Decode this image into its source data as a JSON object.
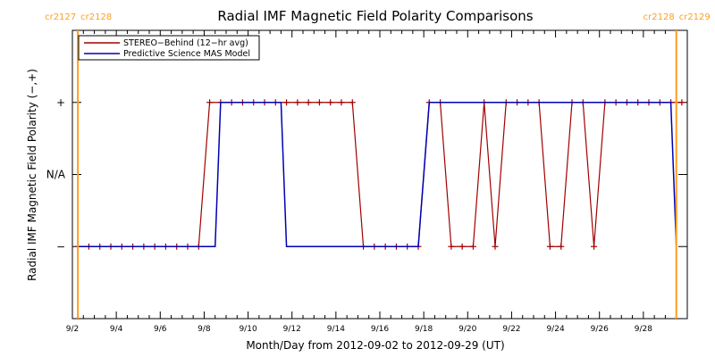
{
  "chart_data": {
    "type": "line",
    "title": "Radial IMF Magnetic Field Polarity Comparisons",
    "xlabel": "Month/Day from 2012-09-02 to 2012-09-29 (UT)",
    "ylabel": "Radial IMF Magnetic Field Polarity (−,+)",
    "x_range": [
      "2012-09-02T00:00",
      "2012-09-30T00:00"
    ],
    "x_ticks": [
      "9/2",
      "9/4",
      "9/6",
      "9/8",
      "9/10",
      "9/12",
      "9/14",
      "9/16",
      "9/18",
      "9/20",
      "9/22",
      "9/24",
      "9/26",
      "9/28"
    ],
    "y_categories": [
      "−",
      "N/A",
      "+"
    ],
    "y_values": [
      -1,
      0,
      1
    ],
    "ylim": [
      -2,
      2
    ],
    "grid": false,
    "legend": "top-left",
    "carrington_markers": [
      {
        "date": "2012-09-02T06:00",
        "labels": [
          "cr2127",
          "cr2128"
        ],
        "label_side": "left"
      },
      {
        "date": "2012-09-29T12:00",
        "labels": [
          "cr2128",
          "cr2129"
        ],
        "label_side": "right"
      }
    ],
    "series": [
      {
        "name": "STEREO−Behind (12−hr avg)",
        "color": "#a00000",
        "step_hours": 12,
        "start": "2012-09-02T06:00",
        "values": [
          -1,
          -1,
          -1,
          -1,
          -1,
          -1,
          -1,
          -1,
          -1,
          -1,
          -1,
          -1,
          1,
          1,
          1,
          1,
          1,
          1,
          1,
          1,
          1,
          1,
          1,
          1,
          1,
          1,
          -1,
          -1,
          -1,
          -1,
          -1,
          -1,
          1,
          1,
          -1,
          -1,
          -1,
          1,
          -1,
          1,
          1,
          1,
          1,
          -1,
          -1,
          1,
          1,
          -1,
          1,
          1,
          1,
          1,
          1,
          1,
          1,
          1
        ]
      },
      {
        "name": "Predictive Science MAS Model",
        "color": "#0000b4",
        "points": [
          [
            "2012-09-02T06:00",
            -1
          ],
          [
            "2012-09-08T12:00",
            -1
          ],
          [
            "2012-09-08T18:00",
            1
          ],
          [
            "2012-09-11T12:00",
            1
          ],
          [
            "2012-09-11T18:00",
            -1
          ],
          [
            "2012-09-17T18:00",
            -1
          ],
          [
            "2012-09-18T06:00",
            1
          ],
          [
            "2012-09-29T06:00",
            1
          ],
          [
            "2012-09-29T12:00",
            -1
          ]
        ]
      }
    ]
  },
  "colors": {
    "marker": "#ff9d1e",
    "axes": "#000000"
  }
}
